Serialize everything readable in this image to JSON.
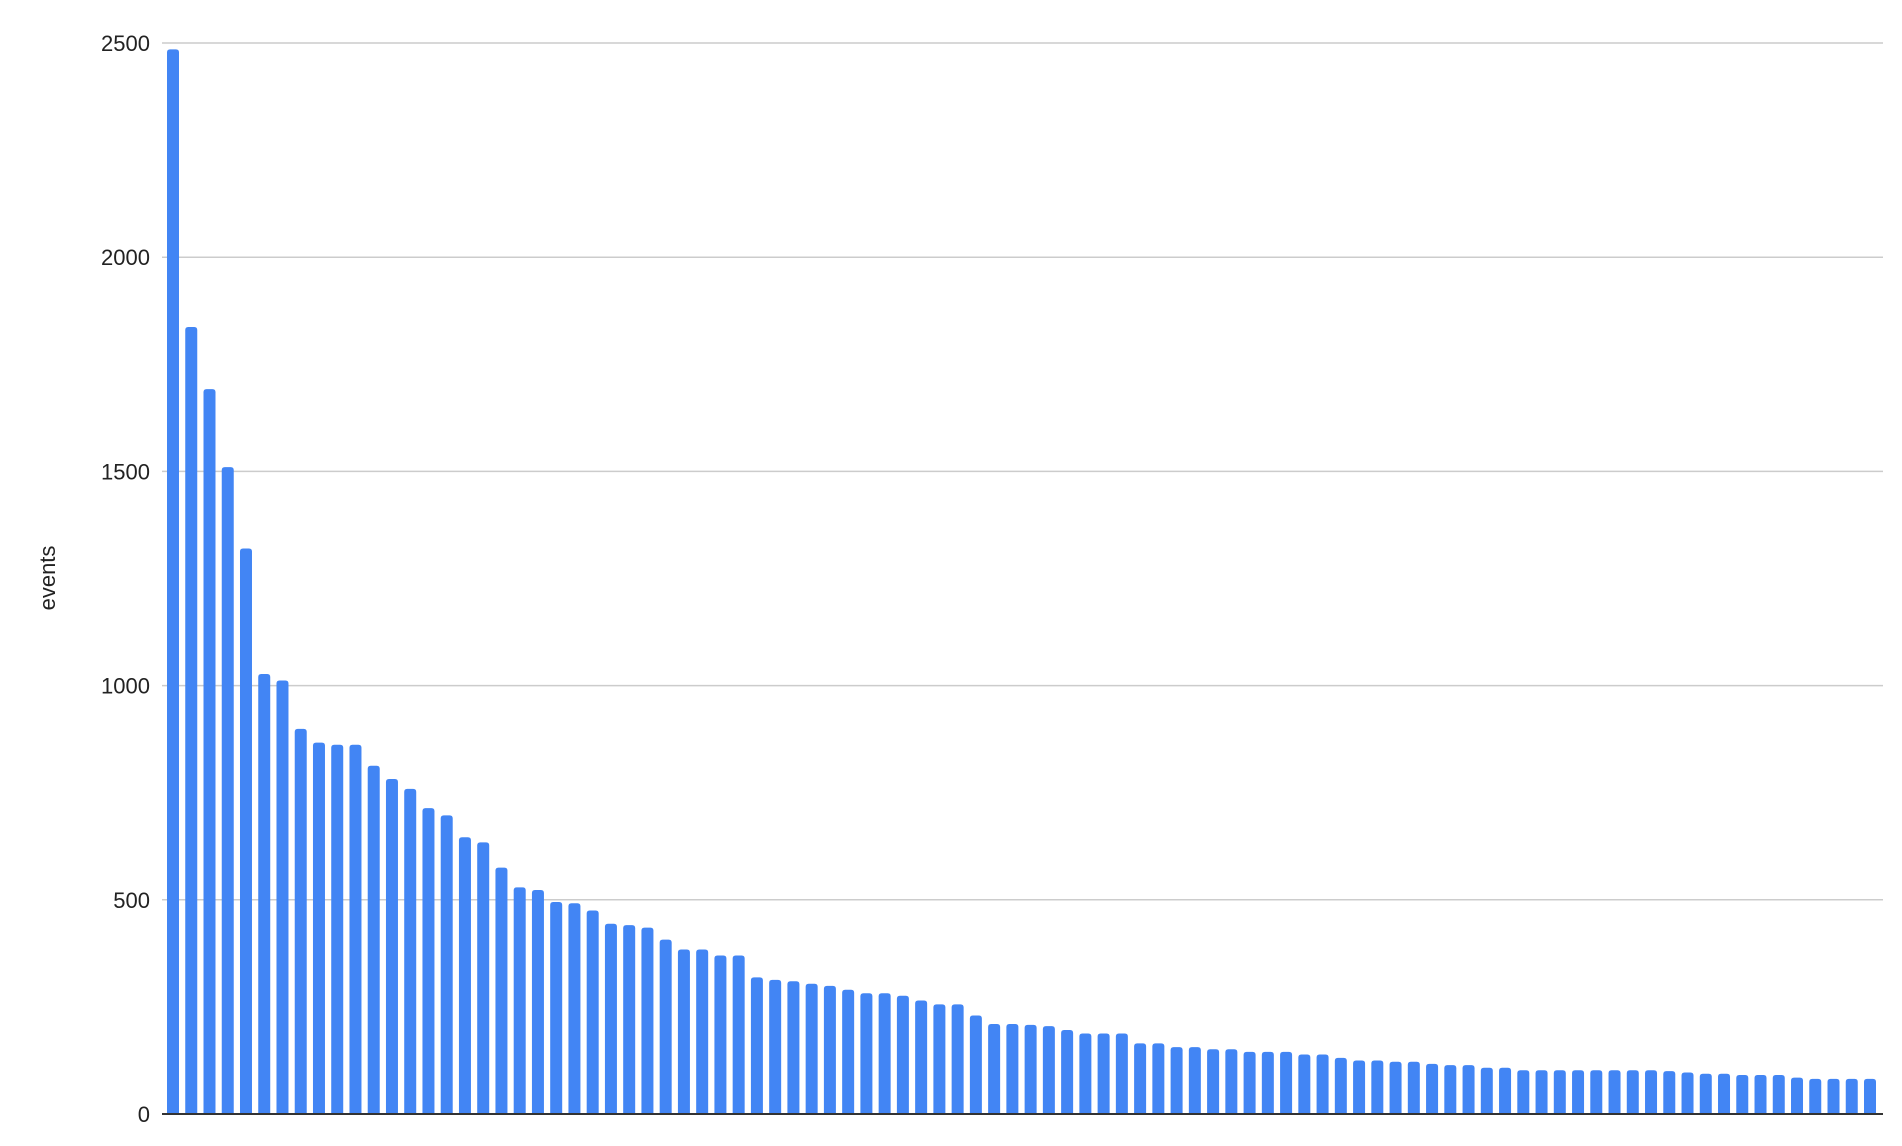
{
  "chart_data": {
    "type": "bar",
    "title": "",
    "xlabel": "",
    "ylabel": "events",
    "ylim": [
      0,
      2500
    ],
    "yticks": [
      "0",
      "500",
      "1000",
      "1500",
      "2000",
      "2500"
    ],
    "grid": true,
    "bar_color": "#4285f4",
    "values": [
      2485,
      1837,
      1692,
      1510,
      1320,
      1027,
      1012,
      899,
      867,
      862,
      862,
      813,
      782,
      759,
      714,
      697,
      646,
      634,
      575,
      529,
      523,
      495,
      492,
      475,
      444,
      441,
      435,
      407,
      384,
      384,
      370,
      370,
      319,
      313,
      310,
      304,
      299,
      290,
      282,
      282,
      276,
      265,
      256,
      256,
      230,
      210,
      210,
      208,
      205,
      196,
      188,
      188,
      188,
      165,
      165,
      156,
      156,
      151,
      151,
      145,
      145,
      145,
      139,
      139,
      131,
      125,
      125,
      122,
      122,
      117,
      114,
      114,
      108,
      108,
      102,
      102,
      102,
      102,
      102,
      102,
      102,
      102,
      100,
      97,
      94,
      94,
      91,
      91,
      91,
      85,
      82,
      82,
      82,
      82
    ]
  }
}
